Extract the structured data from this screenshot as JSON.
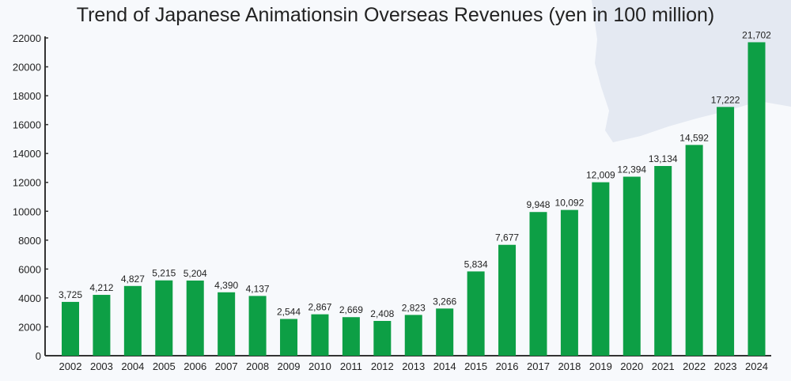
{
  "chart_data": {
    "type": "bar",
    "title": "Trend of Japanese Animationsin Overseas Revenues (yen in 100 million)",
    "xlabel": "",
    "ylabel": "",
    "ylim": [
      0,
      22000
    ],
    "yticks": [
      0,
      2000,
      4000,
      6000,
      8000,
      10000,
      12000,
      14000,
      16000,
      18000,
      20000,
      22000
    ],
    "grid": false,
    "categories": [
      "2002",
      "2003",
      "2004",
      "2005",
      "2006",
      "2007",
      "2008",
      "2009",
      "2010",
      "2011",
      "2012",
      "2013",
      "2014",
      "2015",
      "2016",
      "2017",
      "2018",
      "2019",
      "2020",
      "2021",
      "2022",
      "2023",
      "2024"
    ],
    "values": [
      3725,
      4212,
      4827,
      5215,
      5204,
      4390,
      4137,
      2544,
      2867,
      2669,
      2408,
      2823,
      3266,
      5834,
      7677,
      9948,
      10092,
      12009,
      12394,
      13134,
      14592,
      17222,
      21702
    ],
    "data_labels": [
      "3,725",
      "4,212",
      "4,827",
      "5,215",
      "5,204",
      "4,390",
      "4,137",
      "2,544",
      "2,867",
      "2,669",
      "2,408",
      "2,823",
      "3,266",
      "5,834",
      "7,677",
      "9,948",
      "10,092",
      "12,009",
      "12,394",
      "13,134",
      "14,592",
      "17,222",
      "21,702"
    ],
    "colors": {
      "bar": "#0d9f45",
      "axis": "#333333",
      "background": "#f7f9fc",
      "map_shape": "#e4e9f2"
    }
  }
}
